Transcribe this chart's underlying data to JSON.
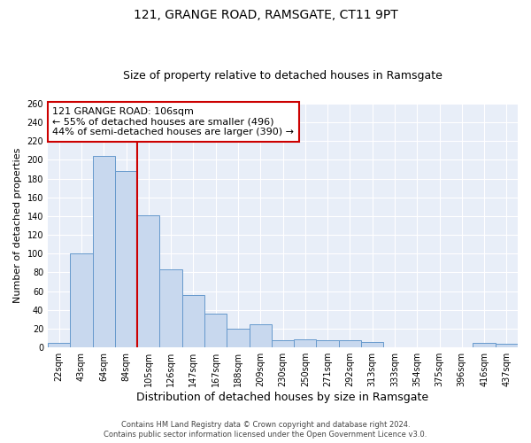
{
  "title": "121, GRANGE ROAD, RAMSGATE, CT11 9PT",
  "subtitle": "Size of property relative to detached houses in Ramsgate",
  "xlabel": "Distribution of detached houses by size in Ramsgate",
  "ylabel": "Number of detached properties",
  "bar_labels": [
    "22sqm",
    "43sqm",
    "64sqm",
    "84sqm",
    "105sqm",
    "126sqm",
    "147sqm",
    "167sqm",
    "188sqm",
    "209sqm",
    "230sqm",
    "250sqm",
    "271sqm",
    "292sqm",
    "313sqm",
    "333sqm",
    "354sqm",
    "375sqm",
    "396sqm",
    "416sqm",
    "437sqm"
  ],
  "bar_values": [
    5,
    100,
    204,
    188,
    141,
    83,
    56,
    36,
    20,
    25,
    8,
    9,
    8,
    8,
    6,
    0,
    0,
    0,
    0,
    5,
    4
  ],
  "bar_color": "#c8d8ee",
  "bar_edgecolor": "#6699cc",
  "vline_color": "#cc0000",
  "vline_pos": 3.5,
  "annotation_line1": "121 GRANGE ROAD: 106sqm",
  "annotation_line2": "← 55% of detached houses are smaller (496)",
  "annotation_line3": "44% of semi-detached houses are larger (390) →",
  "annotation_box_edgecolor": "#cc0000",
  "ylim": [
    0,
    260
  ],
  "yticks": [
    0,
    20,
    40,
    60,
    80,
    100,
    120,
    140,
    160,
    180,
    200,
    220,
    240,
    260
  ],
  "footer_line1": "Contains HM Land Registry data © Crown copyright and database right 2024.",
  "footer_line2": "Contains public sector information licensed under the Open Government Licence v3.0.",
  "bg_color": "#ffffff",
  "plot_bg_color": "#e8eef8",
  "grid_color": "#ffffff",
  "title_fontsize": 10,
  "subtitle_fontsize": 9,
  "ylabel_fontsize": 8,
  "xlabel_fontsize": 9,
  "tick_fontsize": 7,
  "ann_fontsize": 8,
  "footer_fontsize": 6
}
